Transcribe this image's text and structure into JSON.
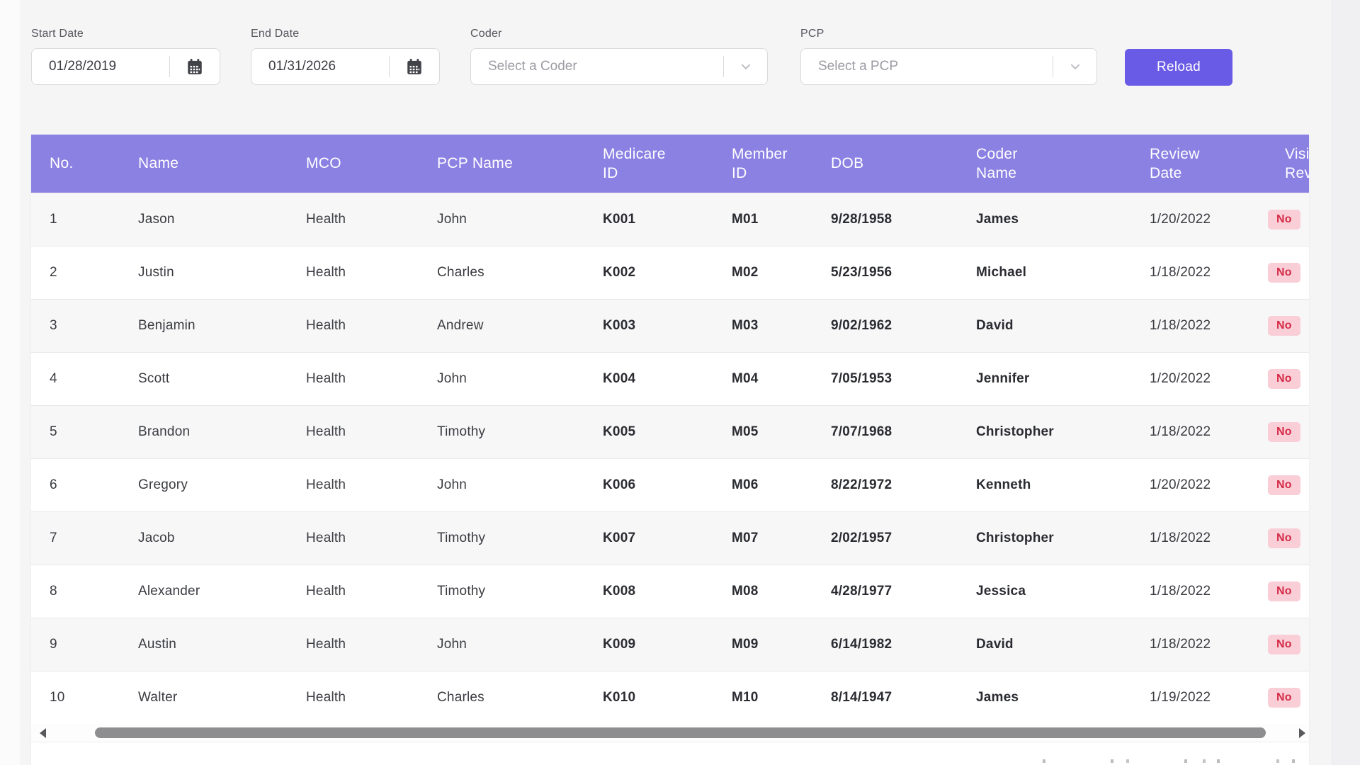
{
  "filters": {
    "start_date": {
      "label": "Start Date",
      "value": "01/28/2019"
    },
    "end_date": {
      "label": "End Date",
      "value": "01/31/2026"
    },
    "coder": {
      "label": "Coder",
      "placeholder": "Select a Coder"
    },
    "pcp": {
      "label": "PCP",
      "placeholder": "Select a PCP"
    },
    "reload_label": "Reload"
  },
  "table": {
    "columns": [
      {
        "key": "no",
        "lines": [
          "No."
        ]
      },
      {
        "key": "name",
        "lines": [
          "Name"
        ]
      },
      {
        "key": "mco",
        "lines": [
          "MCO"
        ]
      },
      {
        "key": "pcp_name",
        "lines": [
          "PCP Name"
        ]
      },
      {
        "key": "medicare_id",
        "lines": [
          "Medicare",
          "ID"
        ]
      },
      {
        "key": "member_id",
        "lines": [
          "Member",
          "ID"
        ]
      },
      {
        "key": "dob",
        "lines": [
          "DOB"
        ]
      },
      {
        "key": "coder_name",
        "lines": [
          "Coder",
          "Name"
        ]
      },
      {
        "key": "review_date",
        "lines": [
          "Review",
          "Date"
        ]
      },
      {
        "key": "visit_reviewed",
        "lines": [
          "Visit",
          "Reviewed"
        ],
        "badge": true
      }
    ],
    "rows": [
      {
        "no": "1",
        "name": "Jason",
        "mco": "Health",
        "pcp_name": "John",
        "medicare_id": "K001",
        "member_id": "M01",
        "dob": "9/28/1958",
        "coder_name": "James",
        "review_date": "1/20/2022",
        "visit_reviewed": "No"
      },
      {
        "no": "2",
        "name": "Justin",
        "mco": "Health",
        "pcp_name": "Charles",
        "medicare_id": "K002",
        "member_id": "M02",
        "dob": "5/23/1956",
        "coder_name": "Michael",
        "review_date": "1/18/2022",
        "visit_reviewed": "No"
      },
      {
        "no": "3",
        "name": "Benjamin",
        "mco": "Health",
        "pcp_name": "Andrew",
        "medicare_id": "K003",
        "member_id": "M03",
        "dob": "9/02/1962",
        "coder_name": "David",
        "review_date": "1/18/2022",
        "visit_reviewed": "No"
      },
      {
        "no": "4",
        "name": "Scott",
        "mco": "Health",
        "pcp_name": "John",
        "medicare_id": "K004",
        "member_id": "M04",
        "dob": "7/05/1953",
        "coder_name": "Jennifer",
        "review_date": "1/20/2022",
        "visit_reviewed": "No"
      },
      {
        "no": "5",
        "name": "Brandon",
        "mco": "Health",
        "pcp_name": "Timothy",
        "medicare_id": "K005",
        "member_id": "M05",
        "dob": "7/07/1968",
        "coder_name": "Christopher",
        "review_date": "1/18/2022",
        "visit_reviewed": "No"
      },
      {
        "no": "6",
        "name": "Gregory",
        "mco": "Health",
        "pcp_name": "John",
        "medicare_id": "K006",
        "member_id": "M06",
        "dob": "8/22/1972",
        "coder_name": "Kenneth",
        "review_date": "1/20/2022",
        "visit_reviewed": "No"
      },
      {
        "no": "7",
        "name": "Jacob",
        "mco": "Health",
        "pcp_name": "Timothy",
        "medicare_id": "K007",
        "member_id": "M07",
        "dob": "2/02/1957",
        "coder_name": "Christopher",
        "review_date": "1/18/2022",
        "visit_reviewed": "No"
      },
      {
        "no": "8",
        "name": "Alexander",
        "mco": "Health",
        "pcp_name": "Timothy",
        "medicare_id": "K008",
        "member_id": "M08",
        "dob": "4/28/1977",
        "coder_name": "Jessica",
        "review_date": "1/18/2022",
        "visit_reviewed": "No"
      },
      {
        "no": "9",
        "name": "Austin",
        "mco": "Health",
        "pcp_name": "John",
        "medicare_id": "K009",
        "member_id": "M09",
        "dob": "6/14/1982",
        "coder_name": "David",
        "review_date": "1/18/2022",
        "visit_reviewed": "No"
      },
      {
        "no": "10",
        "name": "Walter",
        "mco": "Health",
        "pcp_name": "Charles",
        "medicare_id": "K010",
        "member_id": "M10",
        "dob": "8/14/1947",
        "coder_name": "James",
        "review_date": "1/19/2022",
        "visit_reviewed": "No"
      }
    ]
  },
  "icons": {
    "calendar": "calendar-icon",
    "chevron": "chevron-down-icon",
    "scroll_left": "scroll-left-arrow-icon",
    "scroll_right": "scroll-right-arrow-icon"
  },
  "colors": {
    "header_purple": "#8b81e3",
    "button_purple": "#6a5be6",
    "badge_bg": "#f9ced7",
    "badge_text": "#d52b47",
    "page_bg": "#f5f5f6"
  }
}
